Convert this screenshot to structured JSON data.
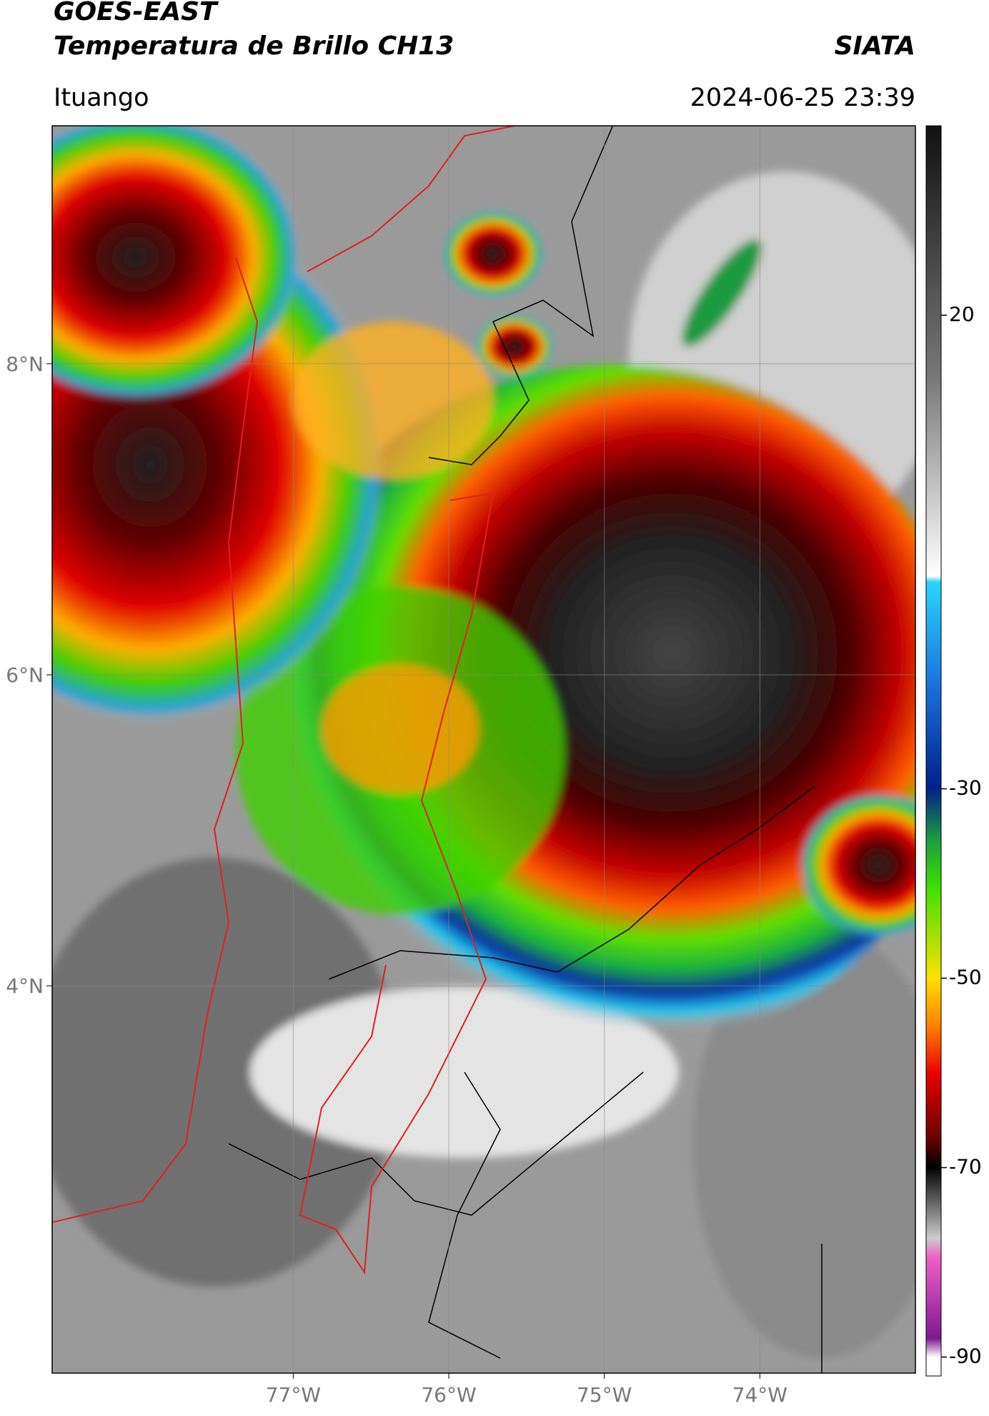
{
  "header": {
    "title": "GOES-EAST",
    "subtitle": "Temperatura de Brillo CH13",
    "agency": "SIATA",
    "location": "Ituango",
    "datetime": "2024-06-25 23:39"
  },
  "map": {
    "xlim": [
      -78.55,
      -73.0
    ],
    "ylim": [
      1.51,
      9.53
    ],
    "xticks": [
      {
        "value": -77,
        "label": "77°W"
      },
      {
        "value": -76,
        "label": "76°W"
      },
      {
        "value": -75,
        "label": "75°W"
      },
      {
        "value": -74,
        "label": "74°W"
      }
    ],
    "yticks": [
      {
        "value": 4,
        "label": "4°N"
      },
      {
        "value": 6,
        "label": "6°N"
      },
      {
        "value": 8,
        "label": "8°N"
      }
    ],
    "grid": true
  },
  "colorbar": {
    "lim": [
      -92,
      40
    ],
    "ticks": [
      -90,
      -70,
      -50,
      -30,
      20
    ]
  }
}
